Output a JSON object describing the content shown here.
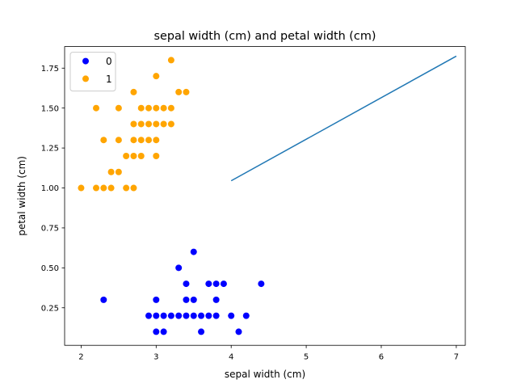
{
  "chart_data": {
    "type": "scatter",
    "title": "sepal width (cm) and petal width (cm)",
    "xlabel": "sepal width (cm)",
    "ylabel": "petal width (cm)",
    "xlim": [
      1.78,
      7.12
    ],
    "ylim": [
      0.015,
      1.885
    ],
    "xticks": [
      2,
      3,
      4,
      5,
      6,
      7
    ],
    "yticks": [
      0.25,
      0.5,
      0.75,
      1.0,
      1.25,
      1.5,
      1.75
    ],
    "xtick_labels": [
      "2",
      "3",
      "4",
      "5",
      "6",
      "7"
    ],
    "ytick_labels": [
      "0.25",
      "0.50",
      "0.75",
      "1.00",
      "1.25",
      "1.50",
      "1.75"
    ],
    "grid": false,
    "legend_position": "top-left",
    "series": [
      {
        "name": "0",
        "color": "#0000ff",
        "marker": "circle",
        "points": [
          [
            4.4,
            0.4
          ],
          [
            3.5,
            0.6
          ],
          [
            3.3,
            0.5
          ],
          [
            3.4,
            0.4
          ],
          [
            3.7,
            0.4
          ],
          [
            3.8,
            0.4
          ],
          [
            3.9,
            0.4
          ],
          [
            2.3,
            0.3
          ],
          [
            3.0,
            0.3
          ],
          [
            3.4,
            0.3
          ],
          [
            3.5,
            0.3
          ],
          [
            3.8,
            0.3
          ],
          [
            2.9,
            0.2
          ],
          [
            3.0,
            0.2
          ],
          [
            3.1,
            0.2
          ],
          [
            3.2,
            0.2
          ],
          [
            3.3,
            0.2
          ],
          [
            3.4,
            0.2
          ],
          [
            3.5,
            0.2
          ],
          [
            3.6,
            0.2
          ],
          [
            3.7,
            0.2
          ],
          [
            3.8,
            0.2
          ],
          [
            4.0,
            0.2
          ],
          [
            4.2,
            0.2
          ],
          [
            3.0,
            0.1
          ],
          [
            3.1,
            0.1
          ],
          [
            3.6,
            0.1
          ],
          [
            4.1,
            0.1
          ]
        ]
      },
      {
        "name": "1",
        "color": "#ffa500",
        "marker": "circle",
        "points": [
          [
            3.2,
            1.8
          ],
          [
            3.0,
            1.7
          ],
          [
            2.7,
            1.6
          ],
          [
            3.3,
            1.6
          ],
          [
            3.4,
            1.6
          ],
          [
            2.2,
            1.5
          ],
          [
            2.5,
            1.5
          ],
          [
            2.8,
            1.5
          ],
          [
            2.9,
            1.5
          ],
          [
            3.0,
            1.5
          ],
          [
            3.1,
            1.5
          ],
          [
            3.2,
            1.5
          ],
          [
            2.7,
            1.4
          ],
          [
            2.8,
            1.4
          ],
          [
            2.9,
            1.4
          ],
          [
            3.0,
            1.4
          ],
          [
            3.1,
            1.4
          ],
          [
            3.2,
            1.4
          ],
          [
            2.3,
            1.3
          ],
          [
            2.5,
            1.3
          ],
          [
            2.7,
            1.3
          ],
          [
            2.8,
            1.3
          ],
          [
            2.9,
            1.3
          ],
          [
            3.0,
            1.3
          ],
          [
            2.6,
            1.2
          ],
          [
            2.7,
            1.2
          ],
          [
            2.8,
            1.2
          ],
          [
            3.0,
            1.2
          ],
          [
            2.4,
            1.1
          ],
          [
            2.5,
            1.1
          ],
          [
            2.0,
            1.0
          ],
          [
            2.2,
            1.0
          ],
          [
            2.3,
            1.0
          ],
          [
            2.4,
            1.0
          ],
          [
            2.6,
            1.0
          ],
          [
            2.7,
            1.0
          ]
        ]
      }
    ],
    "line": {
      "color": "#1f77b4",
      "points": [
        [
          4.0,
          1.045
        ],
        [
          7.0,
          1.825
        ]
      ]
    }
  }
}
